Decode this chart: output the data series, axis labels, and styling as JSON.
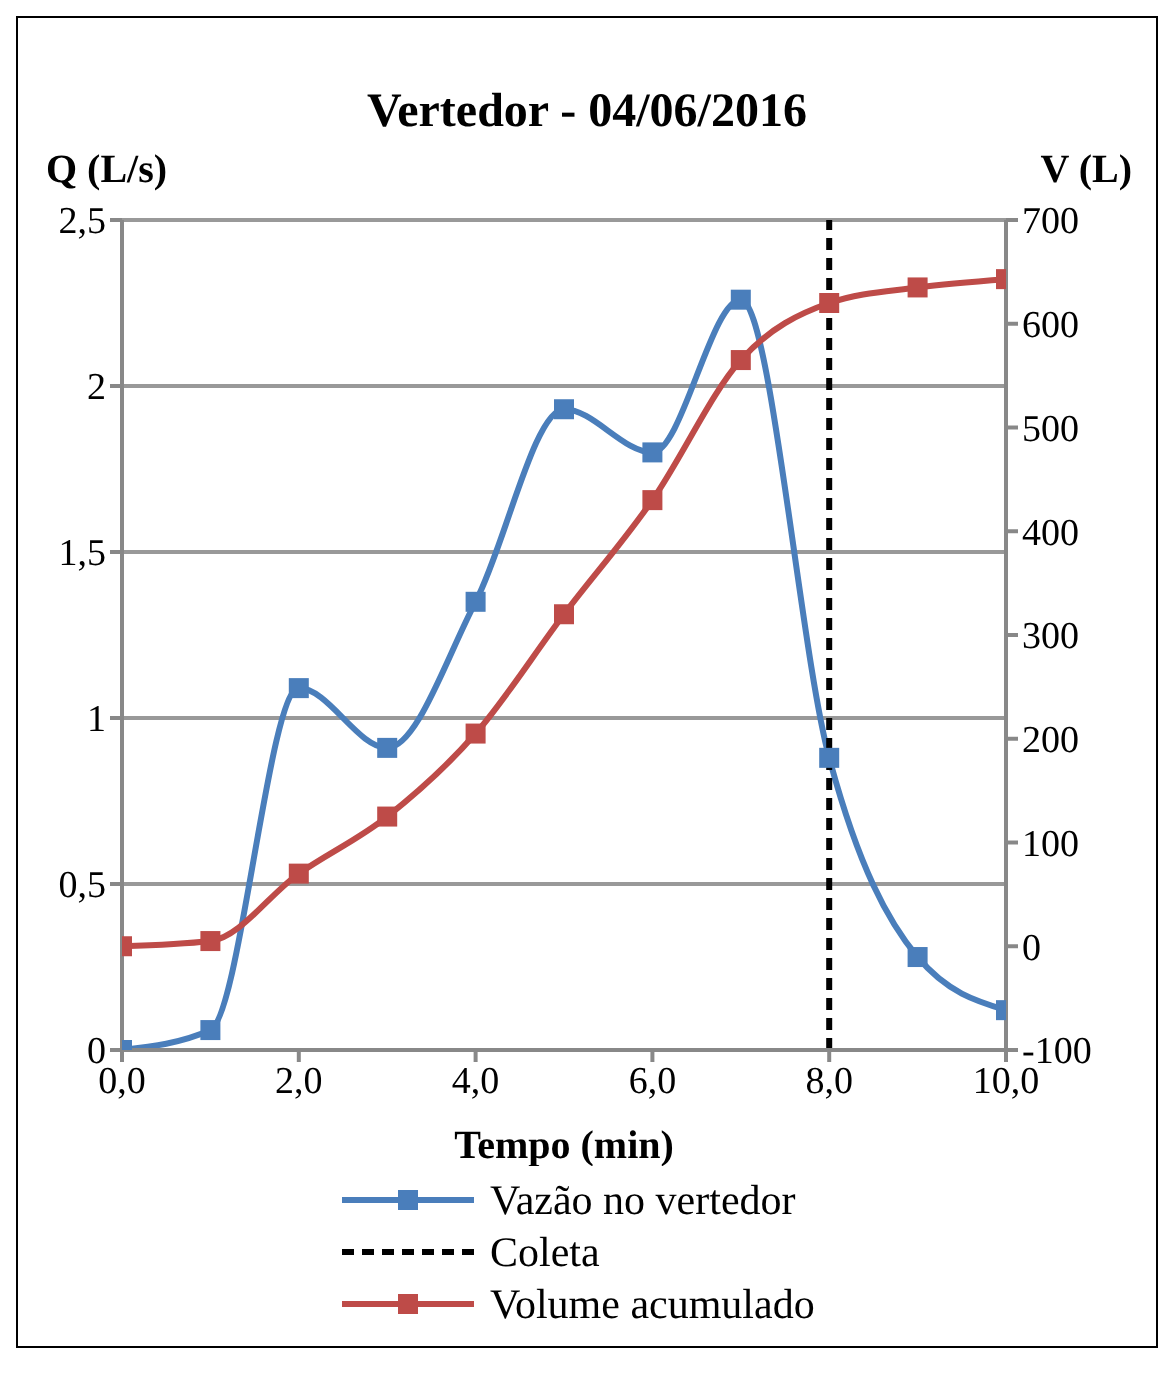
{
  "chart_data": {
    "type": "line",
    "title": "Vertedor - 04/06/2016",
    "xlabel": "Tempo (min)",
    "ylabel": "Q (L/s)",
    "y2label": "V (L)",
    "x": [
      0,
      1,
      2,
      3,
      4,
      5,
      6,
      7,
      8,
      9,
      10
    ],
    "series": [
      {
        "name": "Vazão no vertedor",
        "color": "#4a7ebb",
        "values": [
          0,
          0.06,
          1.09,
          0.91,
          1.35,
          1.93,
          1.8,
          2.26,
          0.88,
          0.28,
          0.12
        ]
      },
      {
        "name": "Volume acumulado",
        "color": "#be4b48",
        "axis": "y2",
        "values": [
          0,
          5,
          70,
          125,
          205,
          320,
          430,
          565,
          620,
          635,
          643
        ]
      }
    ],
    "xlim": [
      0,
      10
    ],
    "xticks": [
      {
        "value": 0,
        "label": "0,0"
      },
      {
        "value": 2,
        "label": "2,0"
      },
      {
        "value": 4,
        "label": "4,0"
      },
      {
        "value": 6,
        "label": "6,0"
      },
      {
        "value": 8,
        "label": "8,0"
      },
      {
        "value": 10,
        "label": "10,0"
      }
    ],
    "ylim": [
      0,
      2.5
    ],
    "yticks": [
      0,
      {
        "value": 0.5,
        "label": "0,5"
      },
      1,
      {
        "value": 1.5,
        "label": "1,5"
      },
      2,
      {
        "value": 2.5,
        "label": "2,5"
      }
    ],
    "y2lim": [
      -100,
      700
    ],
    "y2ticks": [
      -100,
      0,
      100,
      200,
      300,
      400,
      500,
      600,
      700
    ],
    "ref_lines": [
      {
        "axis": "x",
        "value": 8,
        "label": "Coleta",
        "color": "#000000",
        "line_style": "dashed"
      }
    ],
    "grid": "y",
    "legend": "bottom",
    "marker": "square",
    "line_style": "solid"
  }
}
